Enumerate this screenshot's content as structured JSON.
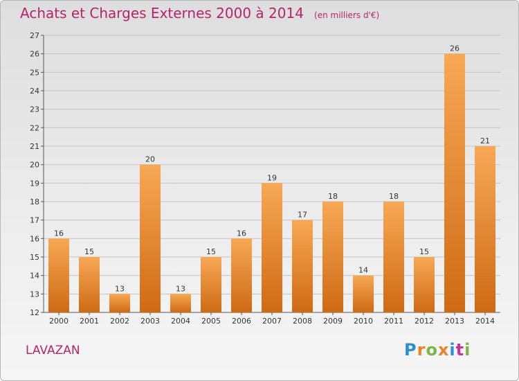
{
  "title": "Achats et Charges Externes 2000 à 2014",
  "unit": "(en milliers d'€)",
  "place": "LAVAZAN",
  "logo": {
    "text": "Proxiti",
    "letter_colors": [
      "#2e8fd0",
      "#e6832b",
      "#7ab648",
      "#e6832b",
      "#2e8fd0",
      "#c8359a",
      "#7ab648"
    ]
  },
  "colors": {
    "bar_light": "#f7a855",
    "bar_dark": "#cf6a14",
    "title": "#b5246b",
    "label": "#333333"
  },
  "chart_data": {
    "type": "bar",
    "categories": [
      "2000",
      "2001",
      "2002",
      "2003",
      "2004",
      "2005",
      "2006",
      "2007",
      "2008",
      "2009",
      "2010",
      "2011",
      "2012",
      "2013",
      "2014"
    ],
    "values": [
      16,
      15,
      13,
      20,
      13,
      15,
      16,
      19,
      17,
      18,
      14,
      18,
      15,
      26,
      21
    ],
    "ylim": [
      12,
      27
    ],
    "yticks": [
      12,
      13,
      14,
      15,
      16,
      17,
      18,
      19,
      20,
      21,
      22,
      23,
      24,
      25,
      26,
      27
    ],
    "grid": true,
    "title": "Achats et Charges Externes 2000 à 2014",
    "xlabel": "",
    "ylabel": ""
  }
}
